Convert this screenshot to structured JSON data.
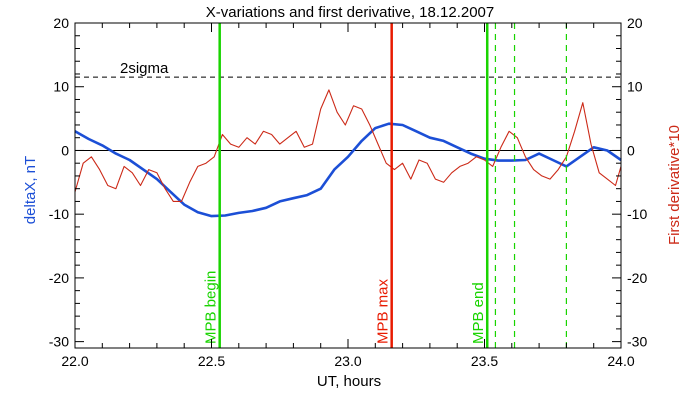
{
  "chart_data": {
    "type": "line",
    "title": "X-variations and first derivative, 18.12.2007",
    "xlabel": "UT, hours",
    "ylabel_left": "deltaX, nT",
    "ylabel_right": "First derivative*10",
    "xlim": [
      22.0,
      24.0
    ],
    "ylim": [
      -31,
      20
    ],
    "x_ticks": [
      22.0,
      22.5,
      23.0,
      23.5,
      24.0
    ],
    "x_tick_labels": [
      "22.0",
      "22.5",
      "23.0",
      "23.5",
      "24.0"
    ],
    "y_ticks": [
      20,
      10,
      0,
      -10,
      -20,
      -30
    ],
    "y_tick_labels": [
      "20",
      "10",
      "0",
      "-10",
      "-20",
      "-30"
    ],
    "grid": false,
    "threshold": {
      "value": 11.5,
      "label": "2sigma"
    },
    "zero_line": 0,
    "series": [
      {
        "axis": "left",
        "color": "#1c4fd6",
        "x": [
          22.0,
          22.05,
          22.1,
          22.15,
          22.2,
          22.25,
          22.3,
          22.35,
          22.4,
          22.45,
          22.5,
          22.55,
          22.6,
          22.65,
          22.7,
          22.75,
          22.8,
          22.85,
          22.9,
          22.95,
          23.0,
          23.05,
          23.1,
          23.15,
          23.2,
          23.25,
          23.3,
          23.35,
          23.4,
          23.45,
          23.5,
          23.55,
          23.6,
          23.65,
          23.7,
          23.75,
          23.8,
          23.85,
          23.9,
          23.95,
          24.0
        ],
        "y": [
          3.0,
          1.8,
          0.8,
          -0.5,
          -1.5,
          -3.0,
          -4.5,
          -6.5,
          -8.5,
          -9.7,
          -10.3,
          -10.2,
          -9.8,
          -9.5,
          -9.0,
          -8.0,
          -7.5,
          -7.0,
          -6.0,
          -3.0,
          -1.0,
          1.5,
          3.5,
          4.2,
          4.0,
          3.0,
          2.0,
          1.5,
          0.5,
          -0.5,
          -1.3,
          -1.6,
          -1.6,
          -1.5,
          -0.5,
          -1.5,
          -2.5,
          -1.0,
          0.5,
          0.0,
          -1.5
        ]
      },
      {
        "axis": "right",
        "color": "#cc2a18",
        "x": [
          22.0,
          22.03,
          22.06,
          22.09,
          22.12,
          22.15,
          22.18,
          22.21,
          22.24,
          22.27,
          22.3,
          22.33,
          22.36,
          22.39,
          22.42,
          22.45,
          22.48,
          22.51,
          22.54,
          22.57,
          22.6,
          22.63,
          22.66,
          22.69,
          22.72,
          22.75,
          22.78,
          22.81,
          22.84,
          22.87,
          22.9,
          22.93,
          22.96,
          22.99,
          23.02,
          23.05,
          23.08,
          23.11,
          23.14,
          23.17,
          23.2,
          23.23,
          23.26,
          23.29,
          23.32,
          23.35,
          23.38,
          23.41,
          23.44,
          23.47,
          23.5,
          23.53,
          23.56,
          23.59,
          23.62,
          23.65,
          23.68,
          23.71,
          23.74,
          23.77,
          23.8,
          23.83,
          23.86,
          23.89,
          23.92,
          23.95,
          23.98,
          24.0
        ],
        "y": [
          -6.5,
          -2.0,
          -1.0,
          -3.0,
          -5.5,
          -6.0,
          -2.5,
          -3.5,
          -5.5,
          -3.0,
          -3.5,
          -6.0,
          -8.0,
          -8.0,
          -5.0,
          -2.5,
          -2.0,
          -1.0,
          2.5,
          1.0,
          0.5,
          2.0,
          1.0,
          3.0,
          2.5,
          1.0,
          2.0,
          3.0,
          0.5,
          1.0,
          6.5,
          9.5,
          6.0,
          4.0,
          7.0,
          6.5,
          4.0,
          1.0,
          -2.0,
          -3.0,
          -2.0,
          -4.5,
          -1.5,
          -2.0,
          -4.5,
          -5.0,
          -3.5,
          -2.5,
          -2.0,
          -1.0,
          -1.5,
          -2.5,
          0.5,
          3.0,
          2.0,
          -1.0,
          -3.0,
          -4.0,
          -4.5,
          -3.0,
          -1.0,
          3.0,
          7.5,
          1.0,
          -3.5,
          -4.5,
          -5.5,
          -2.5
        ]
      }
    ],
    "markers": [
      {
        "x": 22.53,
        "label": "MPB begin",
        "color": "#19d400",
        "style": "solid"
      },
      {
        "x": 23.16,
        "label": "MPB max",
        "color": "#e81a00",
        "style": "solid"
      },
      {
        "x": 23.51,
        "label": "MPB end",
        "color": "#19d400",
        "style": "solid"
      },
      {
        "x": 23.54,
        "label": "",
        "color": "#19d400",
        "style": "dashed"
      },
      {
        "x": 23.61,
        "label": "",
        "color": "#19d400",
        "style": "dashed"
      },
      {
        "x": 23.8,
        "label": "",
        "color": "#19d400",
        "style": "dashed"
      }
    ]
  }
}
